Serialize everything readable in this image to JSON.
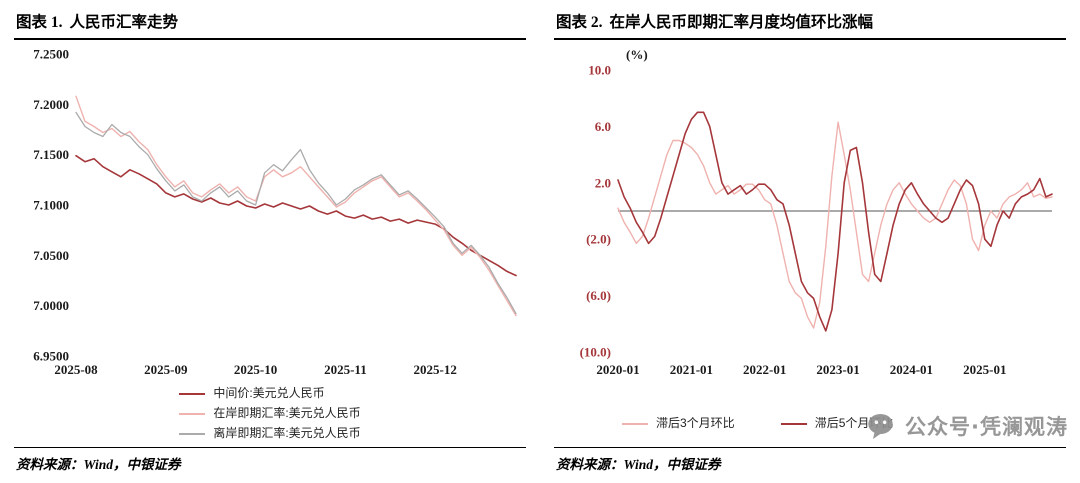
{
  "panels": [
    {
      "header": {
        "tag": "图表 1.",
        "title": "人民币汇率走势"
      },
      "source": "资料来源：Wind，中银证券"
    },
    {
      "header": {
        "tag": "图表 2.",
        "title": "在岸人民币即期汇率月度均值环比涨幅"
      },
      "source": "资料来源：Wind，中银证券"
    }
  ],
  "watermark": {
    "text": "公众号·凭澜观涛",
    "color": "#8f8f8f"
  },
  "chart_data": [
    {
      "type": "line",
      "title": "人民币汇率走势",
      "xlabel": "",
      "ylabel": "",
      "ylim": [
        6.95,
        7.25
      ],
      "grid": false,
      "legend_position": "bottom",
      "yticks": [
        {
          "v": 7.25,
          "label": "7.2500"
        },
        {
          "v": 7.2,
          "label": "7.2000"
        },
        {
          "v": 7.15,
          "label": "7.1500"
        },
        {
          "v": 7.1,
          "label": "7.1000"
        },
        {
          "v": 7.05,
          "label": "7.0500"
        },
        {
          "v": 7.0,
          "label": "7.0000"
        },
        {
          "v": 6.95,
          "label": "6.9500"
        }
      ],
      "ytick_color": "#1a1a1a",
      "xticks": [
        {
          "i": 0,
          "label": "2025-08"
        },
        {
          "i": 10,
          "label": "2025-09"
        },
        {
          "i": 20,
          "label": "2025-10"
        },
        {
          "i": 30,
          "label": "2025-11"
        },
        {
          "i": 40,
          "label": "2025-12"
        }
      ],
      "series": [
        {
          "name": "中间价:美元兑人民币",
          "color": "#A5373B",
          "width": 1.6,
          "values": [
            7.149,
            7.143,
            7.146,
            7.138,
            7.133,
            7.128,
            7.135,
            7.131,
            7.126,
            7.121,
            7.112,
            7.108,
            7.111,
            7.106,
            7.103,
            7.107,
            7.102,
            7.1,
            7.104,
            7.099,
            7.097,
            7.101,
            7.098,
            7.102,
            7.099,
            7.096,
            7.099,
            7.094,
            7.091,
            7.094,
            7.089,
            7.087,
            7.09,
            7.086,
            7.088,
            7.084,
            7.086,
            7.082,
            7.085,
            7.083,
            7.081,
            7.076,
            7.068,
            7.062,
            7.055,
            7.05,
            7.045,
            7.04,
            7.034,
            7.03
          ]
        },
        {
          "name": "在岸即期汇率:美元兑人民币",
          "color": "#EFB2AE",
          "width": 1.4,
          "values": [
            7.208,
            7.183,
            7.178,
            7.172,
            7.176,
            7.168,
            7.173,
            7.163,
            7.155,
            7.14,
            7.128,
            7.118,
            7.124,
            7.112,
            7.108,
            7.115,
            7.121,
            7.112,
            7.118,
            7.108,
            7.104,
            7.128,
            7.135,
            7.128,
            7.132,
            7.138,
            7.128,
            7.118,
            7.108,
            7.098,
            7.103,
            7.112,
            7.118,
            7.124,
            7.128,
            7.118,
            7.108,
            7.112,
            7.104,
            7.095,
            7.085,
            7.075,
            7.06,
            7.05,
            7.058,
            7.048,
            7.035,
            7.02,
            7.005,
            6.99
          ]
        },
        {
          "name": "离岸即期汇率:美元兑人民币",
          "color": "#ABABAB",
          "width": 1.3,
          "values": [
            7.192,
            7.178,
            7.172,
            7.168,
            7.18,
            7.172,
            7.168,
            7.158,
            7.15,
            7.136,
            7.124,
            7.114,
            7.12,
            7.108,
            7.104,
            7.112,
            7.118,
            7.108,
            7.114,
            7.104,
            7.1,
            7.132,
            7.14,
            7.134,
            7.145,
            7.155,
            7.135,
            7.122,
            7.112,
            7.1,
            7.106,
            7.115,
            7.12,
            7.126,
            7.13,
            7.12,
            7.11,
            7.114,
            7.106,
            7.097,
            7.088,
            7.078,
            7.062,
            7.052,
            7.06,
            7.05,
            7.038,
            7.022,
            7.008,
            6.992
          ]
        }
      ]
    },
    {
      "type": "line",
      "title": "在岸人民币即期汇率月度均值环比涨幅",
      "xlabel": "",
      "ylabel": "(%)",
      "ylim": [
        -10,
        10
      ],
      "zero_line": 0,
      "grid": false,
      "legend_position": "bottom",
      "yticks": [
        {
          "v": 10,
          "label": "10.0"
        },
        {
          "v": 6,
          "label": "6.0"
        },
        {
          "v": 2,
          "label": "2.0"
        },
        {
          "v": -2,
          "label": "(2.0)"
        },
        {
          "v": -6,
          "label": "(6.0)"
        },
        {
          "v": -10,
          "label": "(10.0)"
        }
      ],
      "ytick_color": "#A5373B",
      "xticks": [
        {
          "i": 0,
          "label": "2020-01"
        },
        {
          "i": 12,
          "label": "2021-01"
        },
        {
          "i": 24,
          "label": "2022-01"
        },
        {
          "i": 36,
          "label": "2023-01"
        },
        {
          "i": 48,
          "label": "2024-01"
        },
        {
          "i": 60,
          "label": "2025-01"
        }
      ],
      "series": [
        {
          "name": "滞后3个月环比",
          "color": "#EFB2AE",
          "width": 1.4,
          "values": [
            0.2,
            -0.8,
            -1.5,
            -2.3,
            -1.8,
            -0.5,
            1.0,
            2.5,
            4.0,
            5.0,
            5.0,
            4.8,
            4.5,
            4.0,
            3.2,
            2.0,
            1.2,
            1.5,
            1.8,
            1.2,
            1.5,
            1.9,
            1.9,
            1.5,
            0.8,
            0.5,
            -1.0,
            -3.0,
            -5.0,
            -5.8,
            -6.2,
            -7.5,
            -8.3,
            -6.5,
            -2.5,
            2.5,
            6.3,
            4.0,
            1.5,
            -1.5,
            -4.5,
            -5.0,
            -3.0,
            -1.0,
            0.5,
            1.5,
            2.0,
            1.2,
            0.5,
            0.0,
            -0.5,
            -0.8,
            -0.5,
            0.5,
            1.5,
            2.2,
            1.8,
            0.5,
            -2.0,
            -2.8,
            -1.0,
            0.0,
            -0.5,
            0.5,
            1.0,
            1.2,
            1.5,
            2.0,
            1.0,
            1.2,
            0.9,
            1.0
          ]
        },
        {
          "name": "滞后5个月环比",
          "color": "#A5373B",
          "width": 1.6,
          "values": [
            2.2,
            1.0,
            0.2,
            -0.8,
            -1.5,
            -2.3,
            -1.8,
            -0.5,
            1.0,
            2.5,
            4.0,
            5.5,
            6.5,
            7.0,
            7.0,
            6.0,
            4.0,
            2.0,
            1.2,
            1.5,
            1.8,
            1.2,
            1.5,
            1.9,
            1.9,
            1.5,
            0.8,
            0.5,
            -1.0,
            -3.0,
            -5.0,
            -5.8,
            -6.2,
            -7.5,
            -8.5,
            -7.0,
            -3.0,
            2.0,
            4.3,
            4.5,
            2.0,
            -1.5,
            -4.5,
            -5.0,
            -3.0,
            -1.0,
            0.5,
            1.5,
            2.0,
            1.2,
            0.5,
            0.0,
            -0.5,
            -0.8,
            -0.5,
            0.5,
            1.5,
            2.2,
            1.8,
            0.5,
            -2.0,
            -2.5,
            -1.0,
            0.0,
            -0.5,
            0.5,
            1.0,
            1.2,
            1.5,
            2.3,
            1.0,
            1.2
          ]
        }
      ]
    }
  ]
}
